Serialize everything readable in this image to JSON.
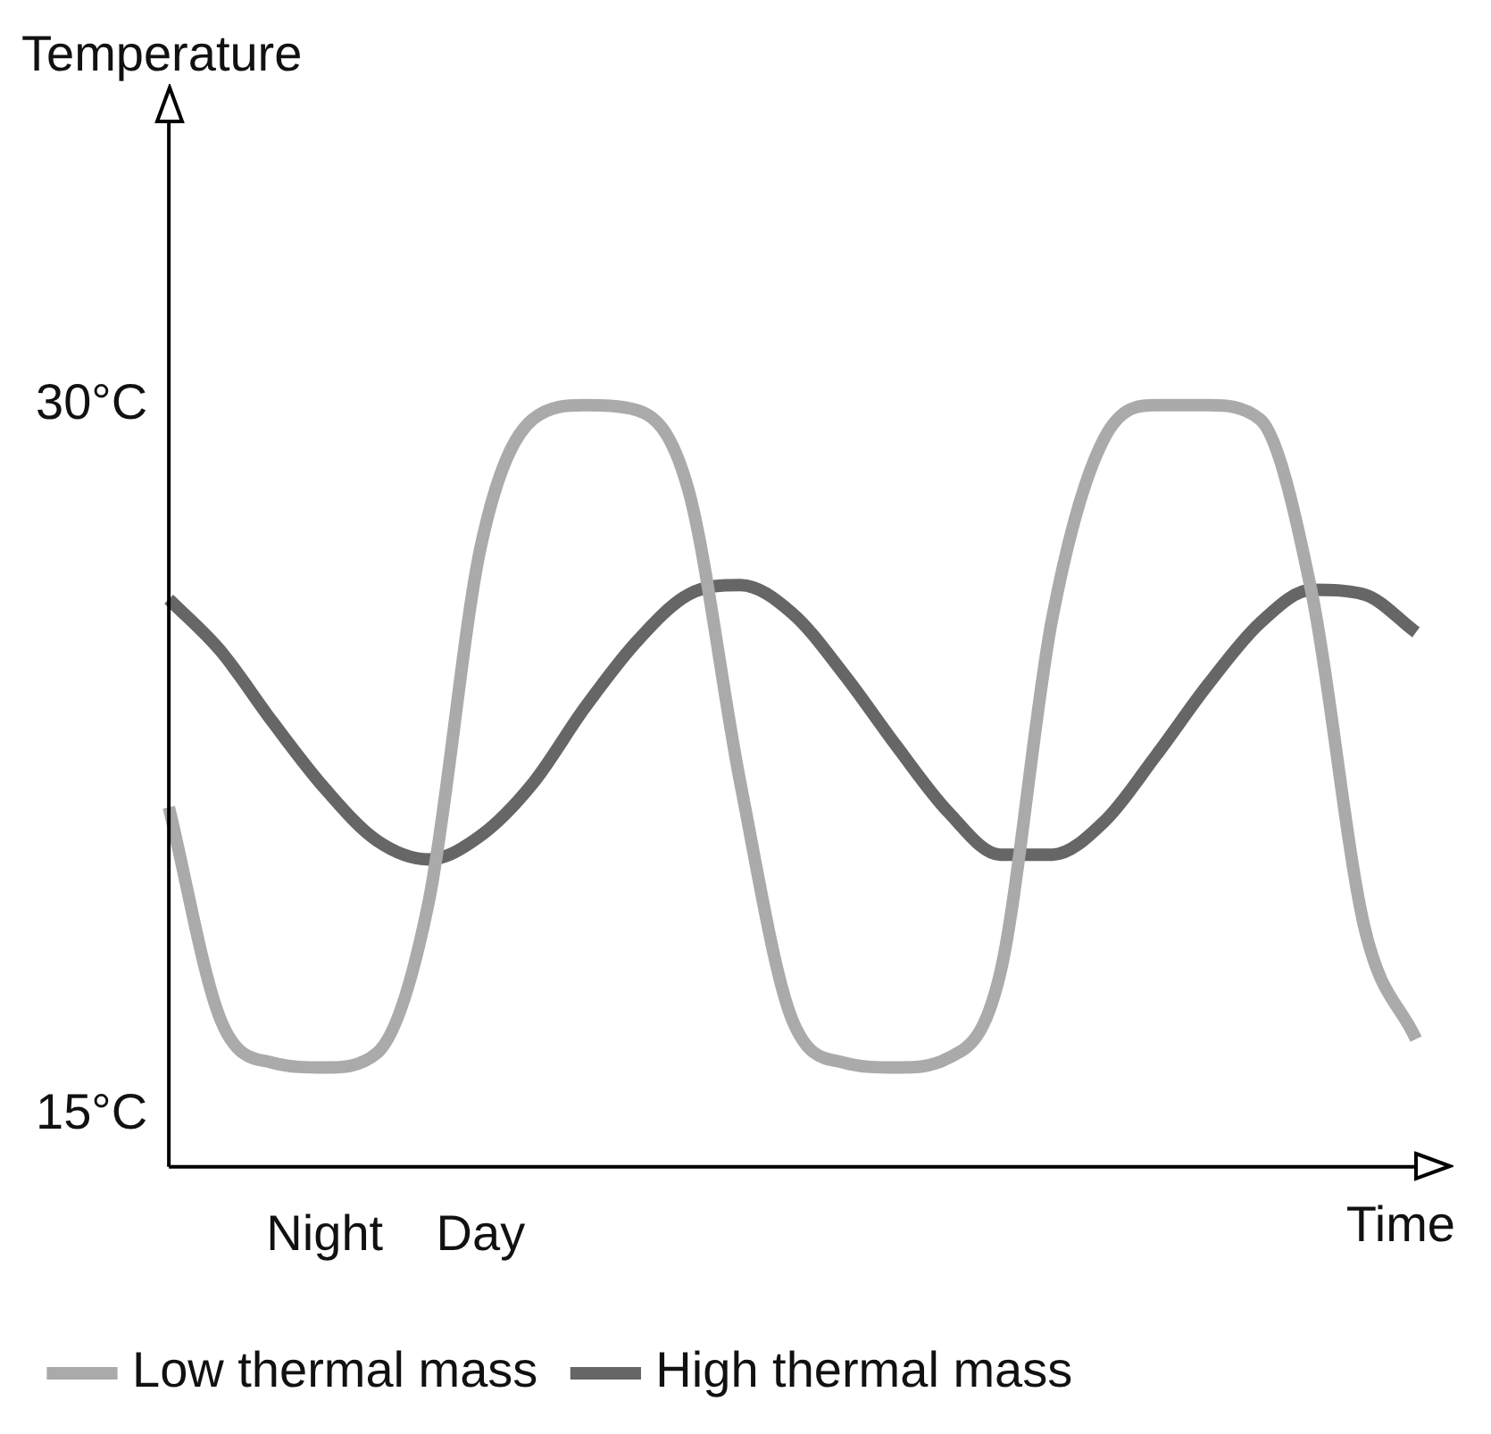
{
  "chart_data": {
    "type": "line",
    "xlabel": "Time",
    "ylabel": "Temperature",
    "categories": [
      null,
      null,
      null,
      "Night",
      null,
      null,
      "Day",
      null,
      null,
      null,
      null,
      null,
      null,
      null,
      null,
      null,
      null,
      null,
      null,
      null,
      null,
      null,
      null,
      null,
      null
    ],
    "ylim": [
      13.9,
      36
    ],
    "yticks": [
      {
        "value": 15,
        "label": "15°C"
      },
      {
        "value": 30,
        "label": "30°C"
      }
    ],
    "grid": false,
    "legend": "bottom",
    "marker": "none",
    "line_style": "solid",
    "series": [
      {
        "name": "Low thermal mass",
        "color": "#aaaaaa",
        "values": [
          21.5,
          17,
          16.1,
          16,
          16.3,
          19.5,
          27,
          29.7,
          30,
          29.9,
          28.2,
          22,
          17,
          16.1,
          16,
          16.2,
          18,
          25.5,
          29.3,
          30,
          30,
          29.7,
          26,
          19,
          16.6
        ]
      },
      {
        "name": "High thermal mass",
        "color": "#666666",
        "values": [
          25.9,
          24.8,
          23.3,
          21.9,
          20.8,
          20.4,
          20.9,
          22,
          23.6,
          25,
          26,
          26.2,
          25.6,
          24.3,
          22.8,
          21.4,
          20.5,
          20.5,
          21.2,
          22.6,
          24.1,
          25.4,
          26.1,
          26,
          25.2
        ]
      }
    ]
  }
}
